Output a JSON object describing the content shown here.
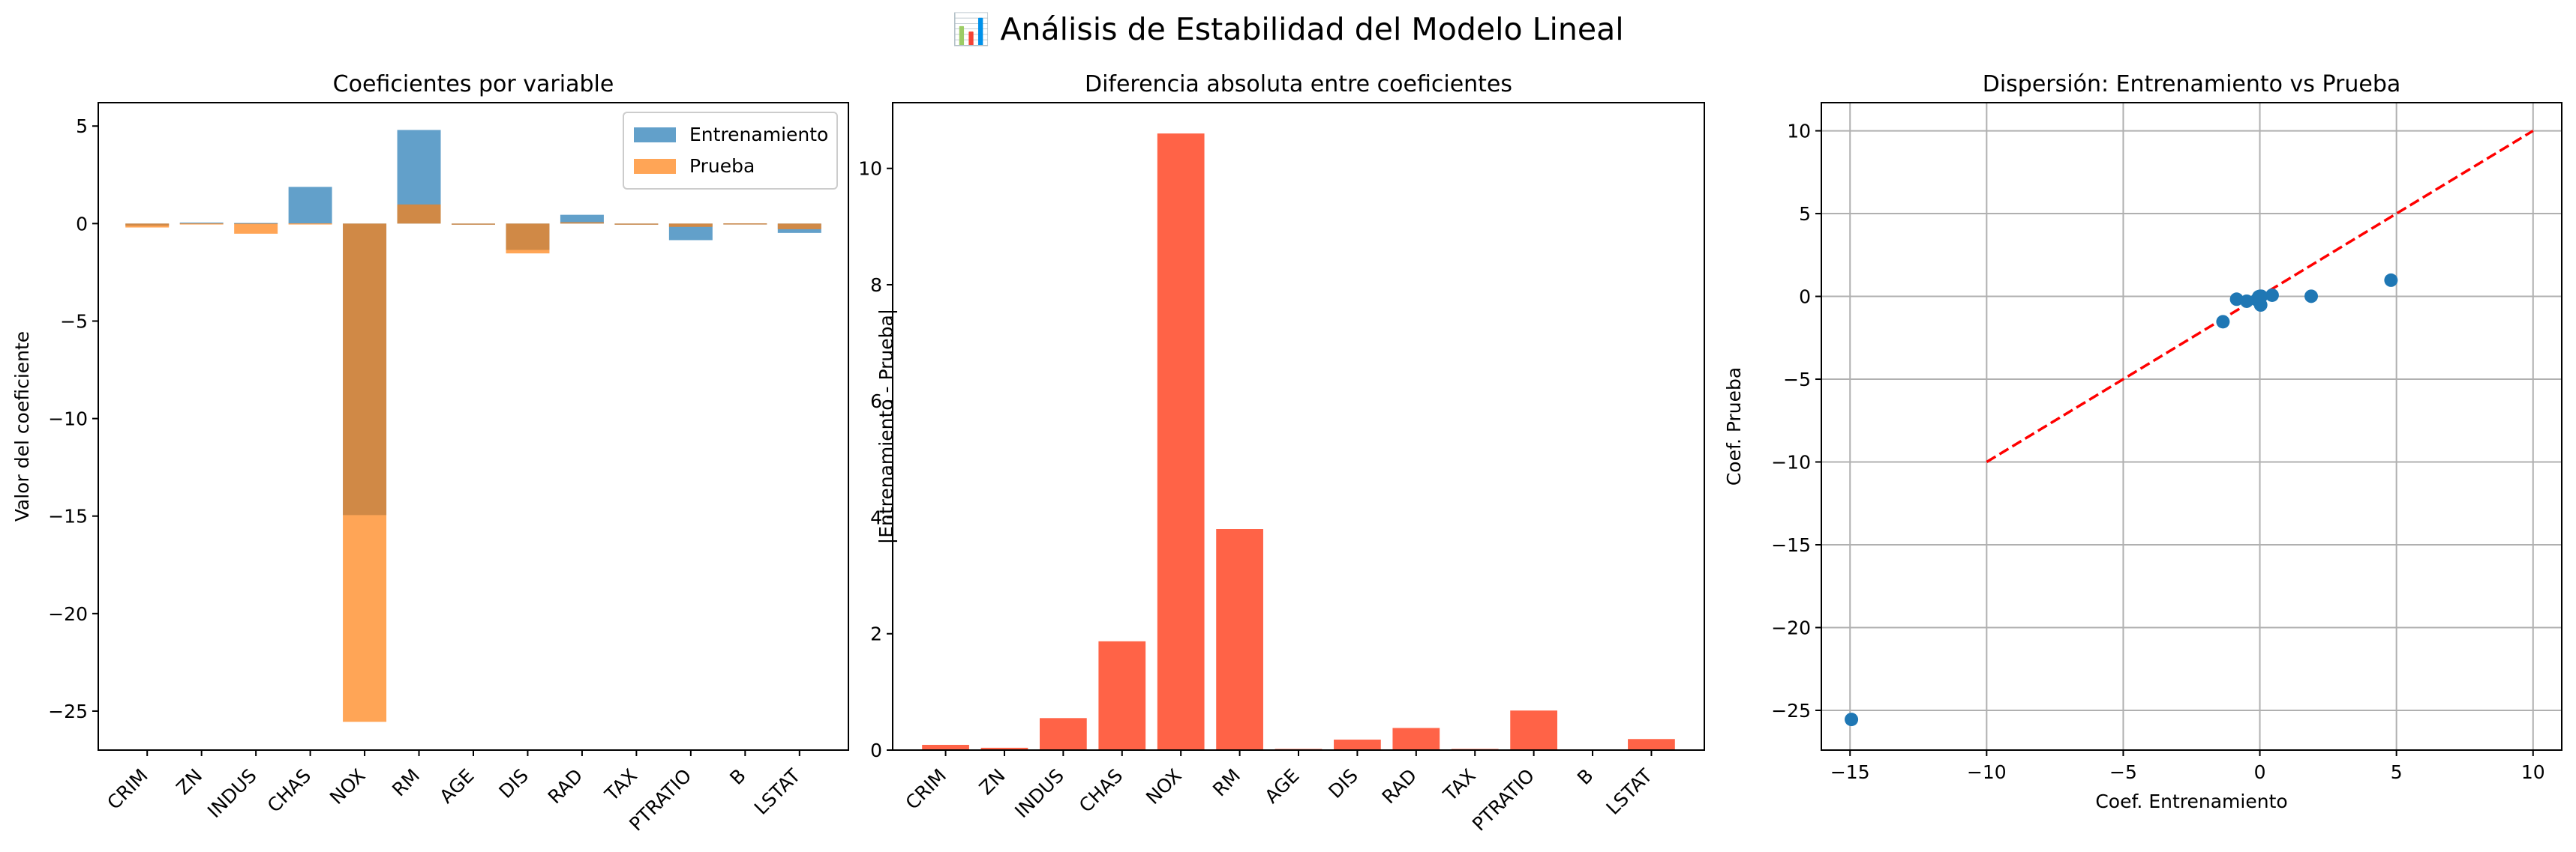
{
  "suptitle": "📊 Análisis de Estabilidad del Modelo Lineal",
  "colors": {
    "train": "#1f77b4",
    "test": "#ff7f0e",
    "diff": "#ff6347",
    "scatter": "#1f77b4",
    "identity_line": "#ff0000",
    "grid": "#b0b0b0"
  },
  "chart_data": [
    {
      "type": "bar",
      "title": "Coeficientes por variable",
      "xlabel": "",
      "ylabel": "Valor del coeficiente",
      "categories": [
        "CRIM",
        "ZN",
        "INDUS",
        "CHAS",
        "NOX",
        "RM",
        "AGE",
        "DIS",
        "RAD",
        "TAX",
        "PTRATIO",
        "B",
        "LSTAT"
      ],
      "series": [
        {
          "name": "Entrenamiento",
          "values": [
            -0.11,
            0.05,
            0.03,
            1.88,
            -14.95,
            4.8,
            0.0,
            -1.35,
            0.45,
            -0.04,
            -0.85,
            0.01,
            -0.48
          ]
        },
        {
          "name": "Prueba",
          "values": [
            -0.2,
            0.01,
            -0.52,
            0.01,
            -25.55,
            0.98,
            -0.02,
            -1.53,
            0.07,
            -0.02,
            -0.17,
            0.01,
            -0.29
          ]
        }
      ],
      "ylim": [
        -27,
        6.2
      ],
      "yticks": [
        5,
        0,
        -5,
        -10,
        -15,
        -20,
        -25
      ],
      "legend": "top-right",
      "grid": false
    },
    {
      "type": "bar",
      "title": "Diferencia absoluta entre coeficientes",
      "xlabel": "",
      "ylabel": "|Entrenamiento - Prueba|",
      "categories": [
        "CRIM",
        "ZN",
        "INDUS",
        "CHAS",
        "NOX",
        "RM",
        "AGE",
        "DIS",
        "RAD",
        "TAX",
        "PTRATIO",
        "B",
        "LSTAT"
      ],
      "values": [
        0.09,
        0.04,
        0.55,
        1.87,
        10.6,
        3.8,
        0.02,
        0.18,
        0.38,
        0.02,
        0.68,
        0.0,
        0.19
      ],
      "ylim": [
        0,
        11.13
      ],
      "yticks": [
        0,
        2,
        4,
        6,
        8,
        10
      ],
      "grid": false
    },
    {
      "type": "scatter",
      "title": "Dispersión: Entrenamiento vs Prueba",
      "xlabel": "Coef. Entrenamiento",
      "ylabel": "Coef. Prueba",
      "points": [
        {
          "x": -0.11,
          "y": -0.2
        },
        {
          "x": 0.05,
          "y": 0.01
        },
        {
          "x": 0.03,
          "y": -0.52
        },
        {
          "x": 1.88,
          "y": 0.01
        },
        {
          "x": -14.95,
          "y": -25.55
        },
        {
          "x": 4.8,
          "y": 0.98
        },
        {
          "x": 0.0,
          "y": -0.02
        },
        {
          "x": -1.35,
          "y": -1.53
        },
        {
          "x": 0.45,
          "y": 0.07
        },
        {
          "x": -0.04,
          "y": -0.02
        },
        {
          "x": -0.85,
          "y": -0.17
        },
        {
          "x": 0.01,
          "y": 0.01
        },
        {
          "x": -0.48,
          "y": -0.29
        }
      ],
      "reference_line": {
        "x": [
          -10,
          10
        ],
        "y": [
          -10,
          10
        ],
        "style": "dashed"
      },
      "xlim": [
        -16.05,
        11.05
      ],
      "ylim": [
        -27.4,
        11.7
      ],
      "xticks": [
        -15,
        -10,
        -5,
        0,
        5,
        10
      ],
      "yticks": [
        10,
        5,
        0,
        -5,
        -10,
        -15,
        -20,
        -25
      ],
      "grid": true
    }
  ]
}
